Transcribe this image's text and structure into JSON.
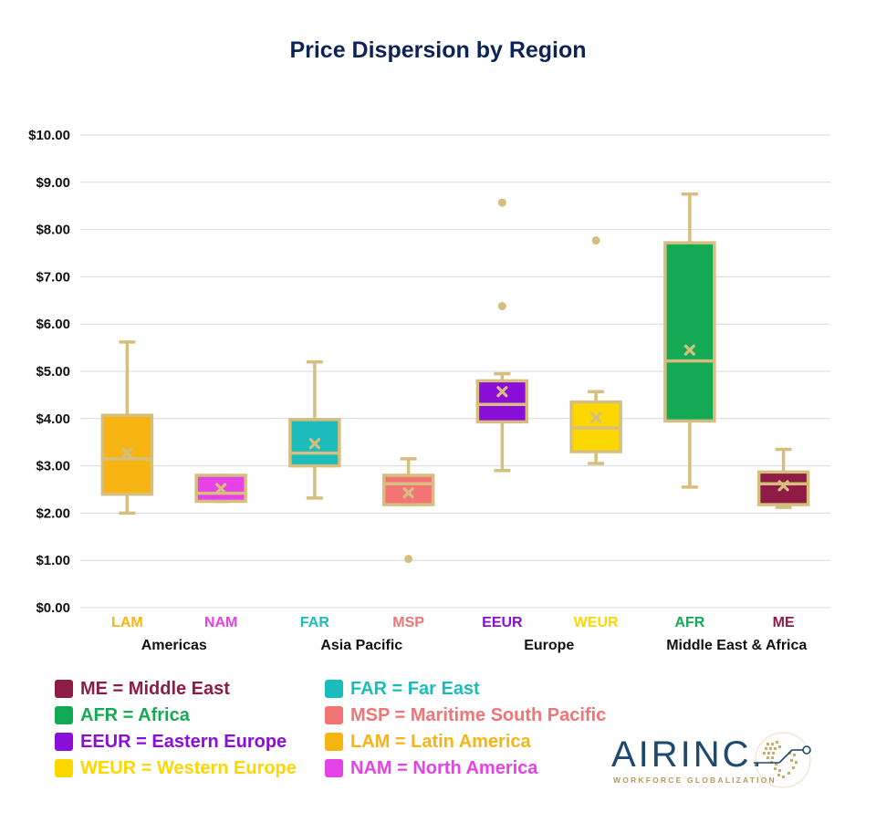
{
  "chart_data": {
    "type": "box",
    "title": "Price Dispersion by Region",
    "ylim": [
      0,
      10
    ],
    "ytick_labels": [
      "$0.00",
      "$1.00",
      "$2.00",
      "$3.00",
      "$4.00",
      "$5.00",
      "$6.00",
      "$7.00",
      "$8.00",
      "$9.00",
      "$10.00"
    ],
    "grid": true,
    "categories": [
      "LAM",
      "NAM",
      "FAR",
      "MSP",
      "EEUR",
      "WEUR",
      "AFR",
      "ME"
    ],
    "groups": [
      {
        "label": "Americas",
        "categories": [
          "LAM",
          "NAM"
        ]
      },
      {
        "label": "Asia Pacific",
        "categories": [
          "FAR",
          "MSP"
        ]
      },
      {
        "label": "Europe",
        "categories": [
          "EEUR",
          "WEUR"
        ]
      },
      {
        "label": "Middle East & Africa",
        "categories": [
          "AFR",
          "ME"
        ]
      }
    ],
    "series": [
      {
        "category": "LAM",
        "color": "#f7b514",
        "min": 2.0,
        "q1": 2.4,
        "median": 3.15,
        "q3": 4.07,
        "max": 5.62,
        "mean": 3.27,
        "outliers": []
      },
      {
        "category": "NAM",
        "color": "#e542e8",
        "min": 2.25,
        "q1": 2.25,
        "median": 2.42,
        "q3": 2.8,
        "max": 2.8,
        "mean": 2.52,
        "outliers": []
      },
      {
        "category": "FAR",
        "color": "#1cbcbc",
        "min": 2.32,
        "q1": 3.0,
        "median": 3.27,
        "q3": 3.98,
        "max": 5.2,
        "mean": 3.47,
        "outliers": []
      },
      {
        "category": "MSP",
        "color": "#f27474",
        "min": 2.18,
        "q1": 2.18,
        "median": 2.62,
        "q3": 2.8,
        "max": 3.15,
        "mean": 2.43,
        "outliers": [
          1.03
        ]
      },
      {
        "category": "EEUR",
        "color": "#8a0ed8",
        "min": 2.9,
        "q1": 3.93,
        "median": 4.3,
        "q3": 4.8,
        "max": 4.95,
        "mean": 4.57,
        "outliers": [
          6.38,
          8.57
        ]
      },
      {
        "category": "WEUR",
        "color": "#fcd800",
        "min": 3.05,
        "q1": 3.3,
        "median": 3.8,
        "q3": 4.35,
        "max": 4.57,
        "mean": 4.02,
        "outliers": [
          7.77
        ]
      },
      {
        "category": "AFR",
        "color": "#14a955",
        "min": 2.55,
        "q1": 3.95,
        "median": 5.22,
        "q3": 7.72,
        "max": 8.75,
        "mean": 5.45,
        "outliers": []
      },
      {
        "category": "ME",
        "color": "#8e1c45",
        "min": 2.12,
        "q1": 2.18,
        "median": 2.62,
        "q3": 2.87,
        "max": 3.35,
        "mean": 2.58,
        "outliers": []
      }
    ],
    "stroke_color": "#d6bf7e",
    "legend": [
      {
        "text": "ME = Middle East",
        "color": "#8e1c45"
      },
      {
        "text": "AFR = Africa",
        "color": "#14a955"
      },
      {
        "text": "EEUR = Eastern Europe",
        "color": "#8a0ed8"
      },
      {
        "text": "WEUR = Western Europe",
        "color": "#fcd800"
      },
      {
        "text": "FAR = Far East",
        "color": "#1cbcbc"
      },
      {
        "text": "MSP = Maritime South Pacific",
        "color": "#f27474"
      },
      {
        "text": "LAM = Latin America",
        "color": "#f7b514"
      },
      {
        "text": "NAM =  North America",
        "color": "#e542e8"
      }
    ]
  },
  "logo": {
    "word": "AIRINC.",
    "tagline": "WORKFORCE GLOBALIZATION"
  }
}
